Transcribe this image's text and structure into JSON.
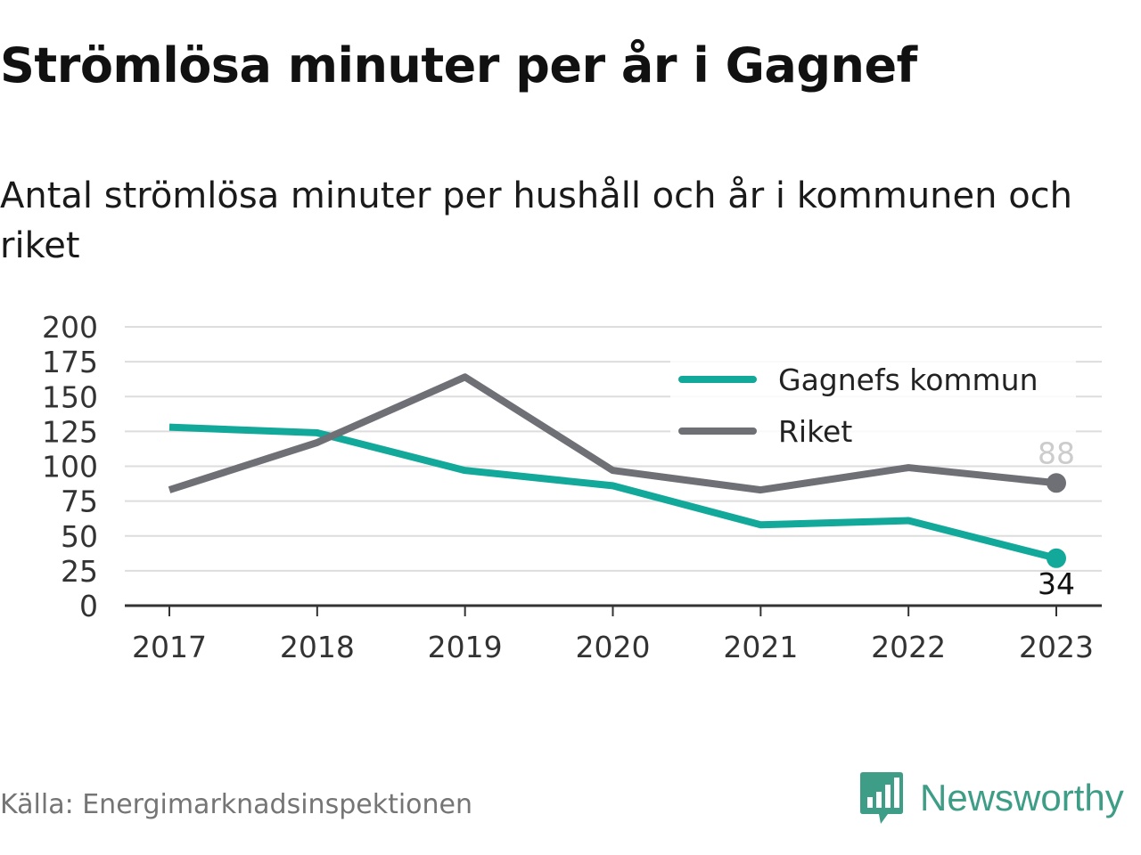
{
  "title": "Strömlösa minuter per år i Gagnef",
  "subtitle": "Antal strömlösa minuter per hushåll och år i kommunen och riket",
  "source": "Källa: Energimarknadsinspektionen",
  "brand": {
    "name": "Newsworthy",
    "icon": "newsworthy-logo-icon",
    "color": "#3d9d87"
  },
  "colors": {
    "gagnef": "#12a89a",
    "riket": "#6f6f76",
    "grid": "#dddddd",
    "axis": "#333333"
  },
  "chart_data": {
    "type": "line",
    "title": "Strömlösa minuter per år i Gagnef",
    "subtitle": "Antal strömlösa minuter per hushåll och år i kommunen och riket",
    "categories": [
      "2017",
      "2018",
      "2019",
      "2020",
      "2021",
      "2022",
      "2023"
    ],
    "ylim": [
      0,
      200
    ],
    "yticks": [
      0,
      25,
      50,
      75,
      100,
      125,
      150,
      175,
      200
    ],
    "grid": "horizontal",
    "legend": "top-right",
    "series": [
      {
        "name": "Gagnefs kommun",
        "color": "#12a89a",
        "values": [
          128,
          124,
          97,
          86,
          58,
          61,
          34
        ],
        "end_label": "34"
      },
      {
        "name": "Riket",
        "color": "#6f6f76",
        "values": [
          83,
          117,
          164,
          97,
          83,
          99,
          88
        ],
        "end_label": "88"
      }
    ]
  }
}
